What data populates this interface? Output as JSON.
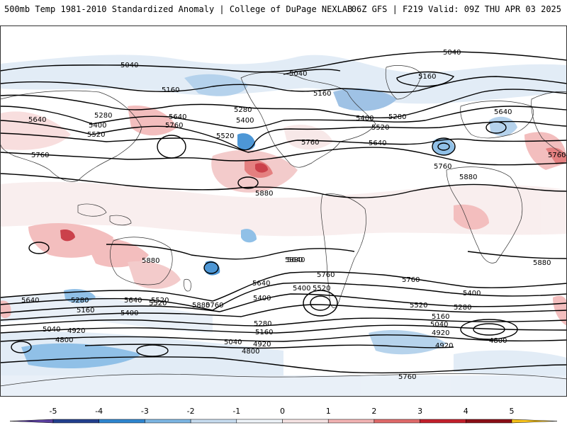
{
  "header": {
    "title_left": "500mb Temp 1981-2010 Standardized Anomaly | College of DuPage NEXLAB",
    "title_right": "06Z GFS | F219 Valid: 09Z THU APR 03 2025"
  },
  "map": {
    "contour_labels": [
      {
        "id": "c1",
        "text": "5040"
      },
      {
        "id": "c2",
        "text": "5040"
      },
      {
        "id": "c3",
        "text": "5040"
      },
      {
        "id": "c4",
        "text": "5160"
      },
      {
        "id": "c5",
        "text": "5160"
      },
      {
        "id": "c6",
        "text": "5160"
      },
      {
        "id": "c7",
        "text": "5280"
      },
      {
        "id": "c8",
        "text": "5280"
      },
      {
        "id": "c9",
        "text": "5280"
      },
      {
        "id": "c10",
        "text": "5640"
      },
      {
        "id": "c11",
        "text": "5400"
      },
      {
        "id": "c12",
        "text": "5520"
      },
      {
        "id": "c13",
        "text": "5640"
      },
      {
        "id": "c14",
        "text": "5760"
      },
      {
        "id": "c15",
        "text": "5400"
      },
      {
        "id": "c16",
        "text": "5520"
      },
      {
        "id": "c17",
        "text": "5760"
      },
      {
        "id": "c18",
        "text": "5400"
      },
      {
        "id": "c19",
        "text": "5520"
      },
      {
        "id": "c20",
        "text": "5640"
      },
      {
        "id": "c21",
        "text": "5640"
      },
      {
        "id": "c22",
        "text": "5760"
      },
      {
        "id": "c23",
        "text": "5880"
      },
      {
        "id": "c24",
        "text": "5760"
      },
      {
        "id": "c25",
        "text": "5880"
      },
      {
        "id": "c26",
        "text": "5880"
      },
      {
        "id": "c27",
        "text": "5880"
      },
      {
        "id": "c28",
        "text": "5880"
      },
      {
        "id": "c29",
        "text": "5760"
      },
      {
        "id": "c30",
        "text": "5760"
      },
      {
        "id": "c31",
        "text": "5640"
      },
      {
        "id": "c32",
        "text": "5520"
      },
      {
        "id": "c33",
        "text": "5400"
      },
      {
        "id": "c34",
        "text": "5280"
      },
      {
        "id": "c35",
        "text": "5160"
      },
      {
        "id": "c36",
        "text": "5040"
      },
      {
        "id": "c37",
        "text": "4920"
      },
      {
        "id": "c38",
        "text": "4800"
      },
      {
        "id": "c39",
        "text": "5640"
      },
      {
        "id": "c40",
        "text": "5760"
      },
      {
        "id": "c41",
        "text": "5400"
      },
      {
        "id": "c42",
        "text": "5520"
      },
      {
        "id": "c43",
        "text": "5280"
      },
      {
        "id": "c44",
        "text": "5160"
      },
      {
        "id": "c45",
        "text": "5040"
      },
      {
        "id": "c46",
        "text": "4920"
      },
      {
        "id": "c47",
        "text": "4800"
      },
      {
        "id": "c48",
        "text": "5640"
      },
      {
        "id": "c49",
        "text": "5760"
      },
      {
        "id": "c50",
        "text": "5400"
      },
      {
        "id": "c51",
        "text": "5520"
      },
      {
        "id": "c52",
        "text": "5280"
      },
      {
        "id": "c53",
        "text": "5160"
      },
      {
        "id": "c54",
        "text": "5040"
      },
      {
        "id": "c55",
        "text": "4920"
      },
      {
        "id": "c56",
        "text": "4920"
      },
      {
        "id": "c57",
        "text": "4800"
      },
      {
        "id": "c58",
        "text": "5760"
      },
      {
        "id": "c59",
        "text": "5880"
      },
      {
        "id": "c60",
        "text": "5640"
      },
      {
        "id": "c61",
        "text": "5520"
      },
      {
        "id": "c62",
        "text": "5400"
      }
    ]
  },
  "colorbar": {
    "ticks": [
      "-5",
      "-4",
      "-3",
      "-2",
      "-1",
      "0",
      "1",
      "2",
      "3",
      "4",
      "5"
    ],
    "colors": [
      "#5b3fa0",
      "#23408e",
      "#2f86d0",
      "#7db6e3",
      "#c7dcef",
      "#eef3f8",
      "#f6e4e4",
      "#f2b3b3",
      "#e06a6a",
      "#c3202c",
      "#8b0f17",
      "#f7c21a"
    ]
  }
}
